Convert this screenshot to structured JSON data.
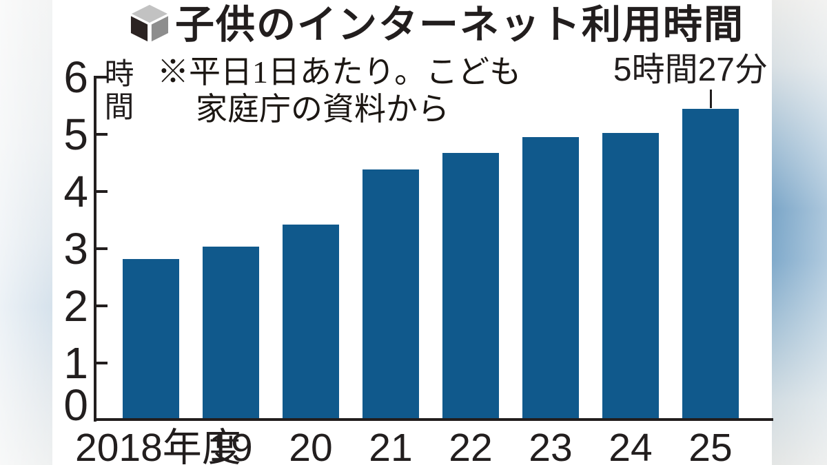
{
  "title": {
    "text": "子供のインターネット利用時間",
    "icon": "cube-icon"
  },
  "note": {
    "line1": "※平日1日あたり。こども",
    "line2": "家庭庁の資料から"
  },
  "annotation": {
    "text": "5時間27分",
    "target_category": "25"
  },
  "y_axis": {
    "unit": "時間",
    "ticks": [
      "0",
      "1",
      "2",
      "3",
      "4",
      "5",
      "6"
    ]
  },
  "chart_data": {
    "type": "bar",
    "title": "子供のインターネット利用時間",
    "subtitle": "※平日1日あたり。こども家庭庁の資料から",
    "categories": [
      "2018年度",
      "19",
      "20",
      "21",
      "22",
      "23",
      "24",
      "25"
    ],
    "values": [
      2.82,
      3.04,
      3.42,
      4.39,
      4.68,
      4.95,
      5.03,
      5.45
    ],
    "unit": "hours",
    "xlabel": "",
    "ylabel": "時間",
    "ylim": [
      0,
      6
    ],
    "y_ticks": [
      0,
      1,
      2,
      3,
      4,
      5,
      6
    ],
    "grid": false,
    "legend_position": "none",
    "bar_color": "#10598c",
    "annotations": [
      {
        "text": "5時間27分",
        "category": "25",
        "value_hours": 5.45
      }
    ]
  },
  "colors": {
    "bar": "#10598c",
    "axis": "#221e1e",
    "background": "#ffffff",
    "side_band_blue": "#7ba6c8"
  }
}
